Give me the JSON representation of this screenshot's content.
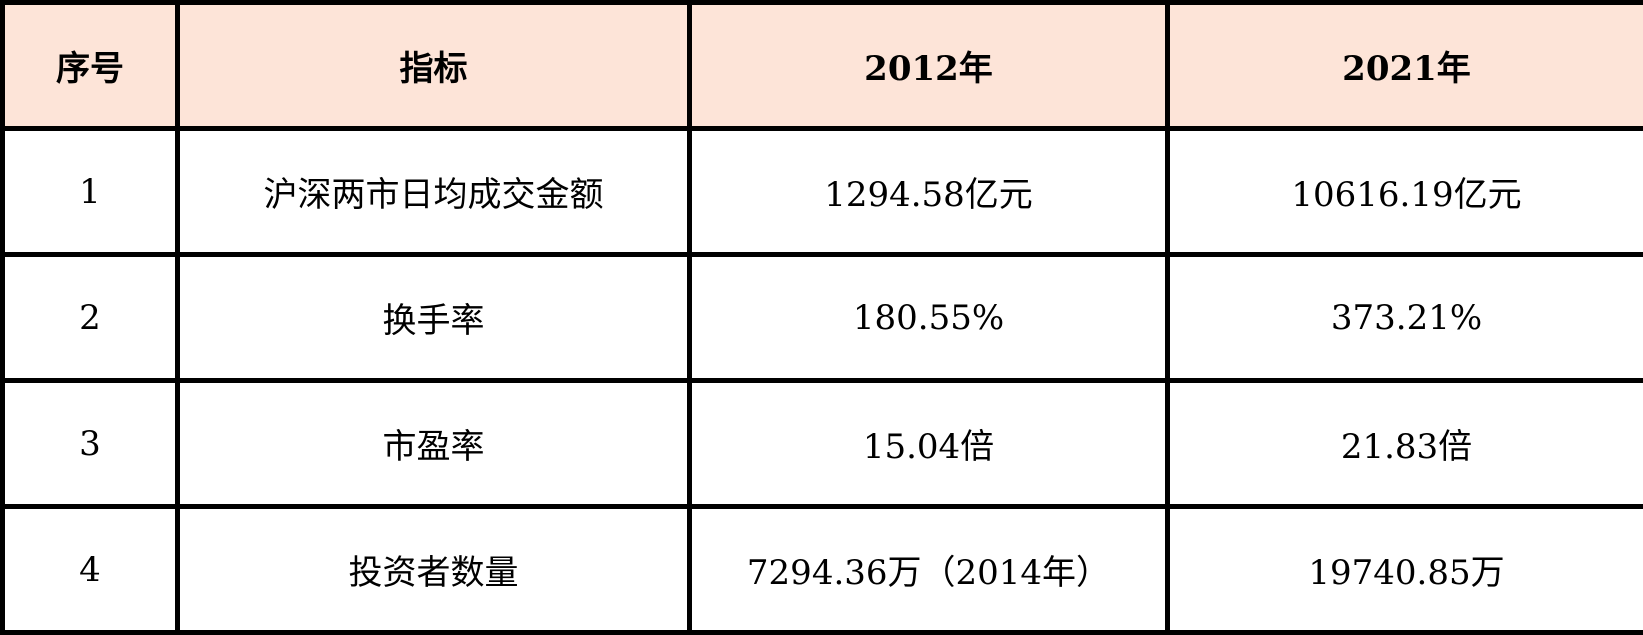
{
  "colors": {
    "header_bg": "#FDE4D8",
    "border": "#000000"
  },
  "headers": [
    "序号",
    "指标",
    "2012年",
    "2021年"
  ],
  "rows": [
    [
      "1",
      "沪深两市日均成交金额",
      "1294.58亿元",
      "10616.19亿元"
    ],
    [
      "2",
      "换手率",
      "180.55%",
      "373.21%"
    ],
    [
      "3",
      "市盈率",
      "15.04倍",
      "21.83倍"
    ],
    [
      "4",
      "投资者数量",
      "7294.36万（2014年）",
      "19740.85万"
    ]
  ]
}
